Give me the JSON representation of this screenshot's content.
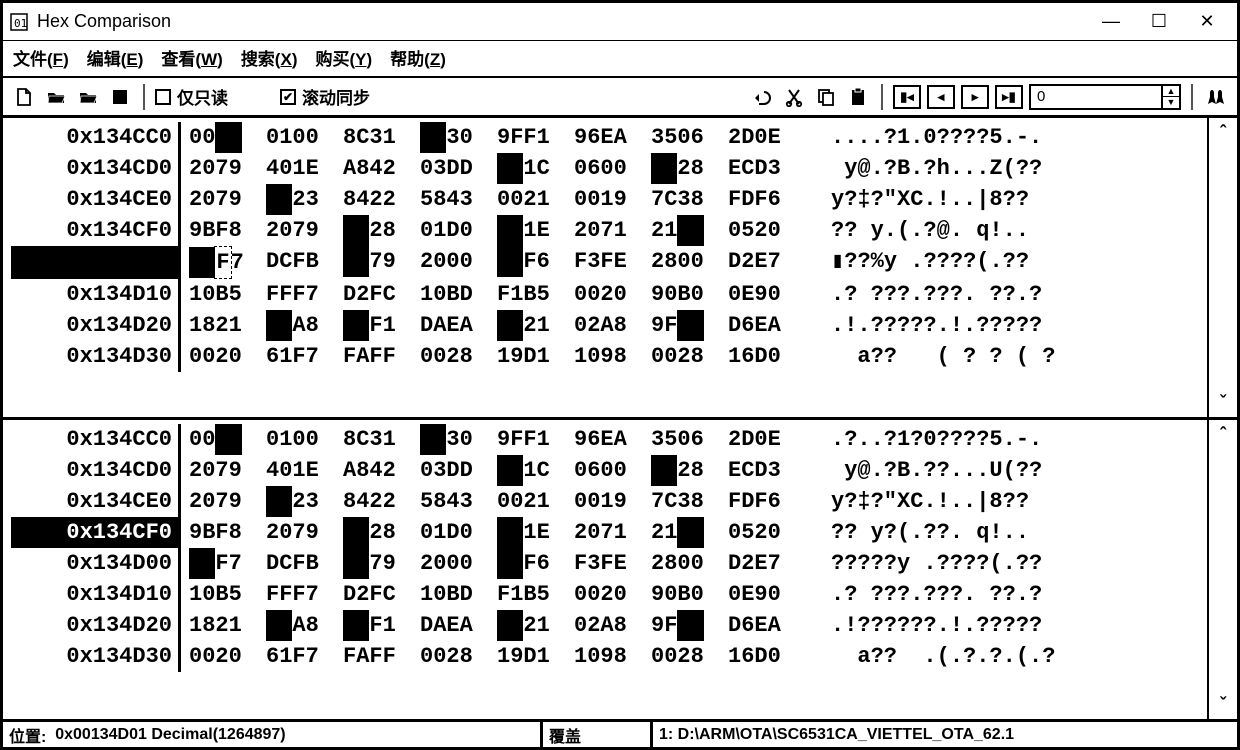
{
  "window": {
    "title": "Hex Comparison"
  },
  "menu": {
    "file": "文件(F)",
    "edit": "编辑(E)",
    "view": "查看(W)",
    "search": "搜索(X)",
    "buy": "购买(Y)",
    "help": "帮助(Z)"
  },
  "toolbar": {
    "readonly_label": "仅只读",
    "scrollsync_label": "滚动同步",
    "spin_value": "0"
  },
  "colors": {
    "diff_bg": "#000000",
    "text": "#000000",
    "bg": "#ffffff"
  },
  "hex": {
    "col_count": 8,
    "pane1": [
      {
        "offset": "0x134CC0",
        "hl": false,
        "words": [
          {
            "t": "00",
            "d": [
              2,
              4
            ]
          },
          "0100",
          "8C31",
          {
            "t": "  30",
            "d": [
              0,
              2
            ]
          },
          "9FF1",
          "96EA",
          "3506",
          "2D0E"
        ],
        "ascii": "....?1.0????5.-."
      },
      {
        "offset": "0x134CD0",
        "hl": false,
        "words": [
          "2079",
          "401E",
          "A842",
          "03DD",
          {
            "t": "  1C",
            "d": [
              0,
              2
            ]
          },
          "0600",
          {
            "t": "  28",
            "d": [
              0,
              2
            ]
          },
          "ECD3"
        ],
        "ascii": " y@.?B.?h...Z(??"
      },
      {
        "offset": "0x134CE0",
        "hl": false,
        "words": [
          "2079",
          {
            "t": "  23",
            "d": [
              0,
              2
            ]
          },
          "8422",
          "5843",
          "0021",
          "0019",
          "7C38",
          "FDF6"
        ],
        "ascii": "y?‡?\"XC.!..|8??"
      },
      {
        "offset": "0x134CF0",
        "hl": false,
        "words": [
          "9BF8",
          "2079",
          {
            "t": "  28",
            "d": [
              0,
              2
            ]
          },
          "01D0",
          {
            "t": "  1E",
            "d": [
              0,
              2
            ]
          },
          "2071",
          {
            "t": "21  ",
            "d": [
              2,
              4
            ]
          },
          "0520"
        ],
        "ascii": "?? y.(.?@. q!.."
      },
      {
        "offset": "        ",
        "hl": true,
        "words": [
          {
            "t": "  F7",
            "d": [
              0,
              2
            ],
            "c": true
          },
          "DCFB",
          {
            "t": "  79",
            "d": [
              0,
              2
            ]
          },
          "2000",
          {
            "t": "  F6",
            "d": [
              0,
              2
            ]
          },
          "F3FE",
          "2800",
          "D2E7"
        ],
        "ascii": "▮??%y .????(.??"
      },
      {
        "offset": "0x134D10",
        "hl": false,
        "words": [
          "10B5",
          "FFF7",
          "D2FC",
          "10BD",
          "F1B5",
          "0020",
          "90B0",
          "0E90"
        ],
        "ascii": ".? ???.???. ??.?"
      },
      {
        "offset": "0x134D20",
        "hl": false,
        "words": [
          "1821",
          {
            "t": "  A8",
            "d": [
              0,
              2
            ]
          },
          {
            "t": "  F1",
            "d": [
              0,
              2
            ]
          },
          "DAEA",
          {
            "t": "  21",
            "d": [
              0,
              2
            ]
          },
          "02A8",
          {
            "t": "9F  ",
            "d": [
              2,
              4
            ]
          },
          "D6EA"
        ],
        "ascii": ".!.?????.!.?????"
      },
      {
        "offset": "0x134D30",
        "hl": false,
        "words": [
          "0020",
          "61F7",
          "FAFF",
          "0028",
          "19D1",
          "1098",
          "0028",
          "16D0"
        ],
        "ascii": "  a??   ( ? ? ( ?"
      }
    ],
    "pane2": [
      {
        "offset": "0x134CC0",
        "hl": false,
        "words": [
          {
            "t": "00",
            "d": [
              2,
              4
            ]
          },
          "0100",
          "8C31",
          {
            "t": "  30",
            "d": [
              0,
              2
            ]
          },
          "9FF1",
          "96EA",
          "3506",
          "2D0E"
        ],
        "ascii": ".?..?1?0????5.-."
      },
      {
        "offset": "0x134CD0",
        "hl": false,
        "words": [
          "2079",
          "401E",
          "A842",
          "03DD",
          {
            "t": "  1C",
            "d": [
              0,
              2
            ]
          },
          "0600",
          {
            "t": "  28",
            "d": [
              0,
              2
            ]
          },
          "ECD3"
        ],
        "ascii": " y@.?B.??...U(??"
      },
      {
        "offset": "0x134CE0",
        "hl": false,
        "words": [
          "2079",
          {
            "t": "  23",
            "d": [
              0,
              2
            ]
          },
          "8422",
          "5843",
          "0021",
          "0019",
          "7C38",
          "FDF6"
        ],
        "ascii": "y?‡?\"XC.!..|8??"
      },
      {
        "offset": "0x134CF0",
        "hl": true,
        "words": [
          "9BF8",
          "2079",
          {
            "t": "  28",
            "d": [
              0,
              2
            ]
          },
          "01D0",
          {
            "t": "  1E",
            "d": [
              0,
              2
            ]
          },
          "2071",
          {
            "t": "21  ",
            "d": [
              2,
              4
            ]
          },
          "0520"
        ],
        "ascii": "?? y?(.??. q!.."
      },
      {
        "offset": "0x134D00",
        "hl": false,
        "words": [
          {
            "t": "  F7",
            "d": [
              0,
              2
            ]
          },
          "DCFB",
          {
            "t": "  79",
            "d": [
              0,
              2
            ]
          },
          "2000",
          {
            "t": "  F6",
            "d": [
              0,
              2
            ]
          },
          "F3FE",
          "2800",
          "D2E7"
        ],
        "ascii": "?????y .????(.??"
      },
      {
        "offset": "0x134D10",
        "hl": false,
        "words": [
          "10B5",
          "FFF7",
          "D2FC",
          "10BD",
          "F1B5",
          "0020",
          "90B0",
          "0E90"
        ],
        "ascii": ".? ???.???. ??.?"
      },
      {
        "offset": "0x134D20",
        "hl": false,
        "words": [
          "1821",
          {
            "t": "  A8",
            "d": [
              0,
              2
            ]
          },
          {
            "t": "  F1",
            "d": [
              0,
              2
            ]
          },
          "DAEA",
          {
            "t": "  21",
            "d": [
              0,
              2
            ]
          },
          "02A8",
          {
            "t": "9F  ",
            "d": [
              2,
              4
            ]
          },
          "D6EA"
        ],
        "ascii": ".!??????.!.?????"
      },
      {
        "offset": "0x134D30",
        "hl": false,
        "words": [
          "0020",
          "61F7",
          "FAFF",
          "0028",
          "19D1",
          "1098",
          "0028",
          "16D0"
        ],
        "ascii": "  a??  .(.?.?.(.?"
      }
    ]
  },
  "status": {
    "pos_label": "位置:",
    "pos_value": "0x00134D01 Decimal(1264897)",
    "mode": "覆盖",
    "file_label": "1: D:\\ARM\\OTA\\SC6531CA_VIETTEL_OTA_62.1"
  }
}
